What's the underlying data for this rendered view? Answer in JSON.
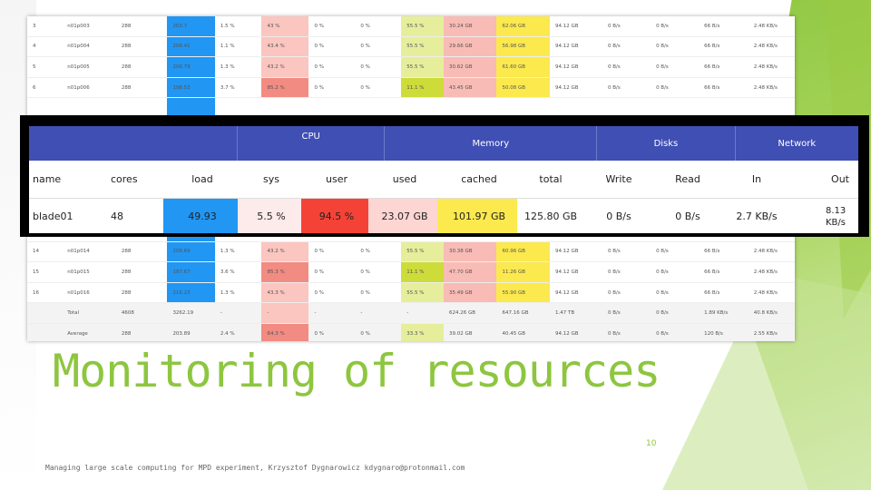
{
  "colors": {
    "accent": "#8dc63f",
    "header": "#3f4fb3",
    "load": "#2196f3",
    "user": "#f44336",
    "cached": "#ffeb3b"
  },
  "bg_rows": [
    {
      "idx": "3",
      "name": "n01p003",
      "cores": "288",
      "load": "203.7",
      "sys": "1.5 %",
      "user": "43 %",
      "c1": "0 %",
      "c2": "0 %",
      "c3": "55.5 %",
      "used": "30.24 GB",
      "cached": "62.06 GB",
      "total": "94.12 GB",
      "w": "0 B/s",
      "r": "0 B/s",
      "in": "66 B/s",
      "out": "2.48 KB/s"
    },
    {
      "idx": "4",
      "name": "n01p004",
      "cores": "288",
      "load": "206.41",
      "sys": "1.1 %",
      "user": "43.4 %",
      "c1": "0 %",
      "c2": "0 %",
      "c3": "55.5 %",
      "used": "29.66 GB",
      "cached": "56.98 GB",
      "total": "94.12 GB",
      "w": "0 B/s",
      "r": "0 B/s",
      "in": "66 B/s",
      "out": "2.48 KB/s"
    },
    {
      "idx": "5",
      "name": "n01p005",
      "cores": "288",
      "load": "206.79",
      "sys": "1.3 %",
      "user": "43.2 %",
      "c1": "0 %",
      "c2": "0 %",
      "c3": "55.5 %",
      "used": "30.62 GB",
      "cached": "61.60 GB",
      "total": "94.12 GB",
      "w": "0 B/s",
      "r": "0 B/s",
      "in": "66 B/s",
      "out": "2.48 KB/s"
    },
    {
      "idx": "6",
      "name": "n01p006",
      "cores": "288",
      "load": "198.53",
      "sys": "3.7 %",
      "user": "85.2 %",
      "c1": "0 %",
      "c2": "0 %",
      "c3": "11.1 %",
      "used": "43.45 GB",
      "cached": "50.08 GB",
      "total": "94.12 GB",
      "w": "0 B/s",
      "r": "0 B/s",
      "in": "66 B/s",
      "out": "2.48 KB/s"
    },
    {
      "idx": "",
      "name": "",
      "cores": "",
      "load": "",
      "sys": "",
      "user": "",
      "c1": "",
      "c2": "",
      "c3": "",
      "used": "",
      "cached": "",
      "total": "",
      "w": "",
      "r": "",
      "in": "",
      "out": ""
    },
    {
      "idx": "",
      "name": "",
      "cores": "",
      "load": "",
      "sys": "",
      "user": "",
      "c1": "",
      "c2": "",
      "c3": "",
      "used": "",
      "cached": "",
      "total": "",
      "w": "",
      "r": "",
      "in": "",
      "out": ""
    },
    {
      "idx": "",
      "name": "",
      "cores": "",
      "load": "",
      "sys": "",
      "user": "",
      "c1": "",
      "c2": "",
      "c3": "",
      "used": "",
      "cached": "",
      "total": "",
      "w": "",
      "r": "",
      "in": "",
      "out": ""
    },
    {
      "idx": "",
      "name": "",
      "cores": "",
      "load": "",
      "sys": "",
      "user": "",
      "c1": "",
      "c2": "",
      "c3": "",
      "used": "",
      "cached": "",
      "total": "",
      "w": "",
      "r": "",
      "in": "",
      "out": ""
    },
    {
      "idx": "",
      "name": "",
      "cores": "",
      "load": "",
      "sys": "",
      "user": "",
      "c1": "",
      "c2": "",
      "c3": "",
      "used": "",
      "cached": "",
      "total": "",
      "w": "",
      "r": "",
      "in": "",
      "out": ""
    },
    {
      "idx": "",
      "name": "",
      "cores": "",
      "load": "",
      "sys": "",
      "user": "",
      "c1": "",
      "c2": "",
      "c3": "",
      "used": "",
      "cached": "",
      "total": "",
      "w": "",
      "r": "",
      "in": "",
      "out": ""
    },
    {
      "idx": "",
      "name": "",
      "cores": "",
      "load": "",
      "sys": "",
      "user": "",
      "c1": "",
      "c2": "",
      "c3": "",
      "used": "",
      "cached": "",
      "total": "",
      "w": "",
      "r": "",
      "in": "",
      "out": ""
    },
    {
      "idx": "14",
      "name": "n01p014",
      "cores": "288",
      "load": "208.69",
      "sys": "1.3 %",
      "user": "43.2 %",
      "c1": "0 %",
      "c2": "0 %",
      "c3": "55.5 %",
      "used": "30.38 GB",
      "cached": "60.96 GB",
      "total": "94.12 GB",
      "w": "0 B/s",
      "r": "0 B/s",
      "in": "66 B/s",
      "out": "2.48 KB/s"
    },
    {
      "idx": "15",
      "name": "n01p015",
      "cores": "288",
      "load": "197.67",
      "sys": "3.6 %",
      "user": "85.3 %",
      "c1": "0 %",
      "c2": "0 %",
      "c3": "11.1 %",
      "used": "47.70 GB",
      "cached": "11.26 GB",
      "total": "94.12 GB",
      "w": "0 B/s",
      "r": "0 B/s",
      "in": "66 B/s",
      "out": "2.48 KB/s"
    },
    {
      "idx": "16",
      "name": "n01p016",
      "cores": "288",
      "load": "216.23",
      "sys": "1.3 %",
      "user": "43.3 %",
      "c1": "0 %",
      "c2": "0 %",
      "c3": "55.5 %",
      "used": "35.49 GB",
      "cached": "55.90 GB",
      "total": "94.12 GB",
      "w": "0 B/s",
      "r": "0 B/s",
      "in": "66 B/s",
      "out": "2.48 KB/s"
    },
    {
      "idx": "",
      "name": "Total",
      "cores": "4608",
      "load": "3262.19",
      "sys": "-",
      "user": "-",
      "c1": "-",
      "c2": "-",
      "c3": "-",
      "used": "624.26 GB",
      "cached": "647.16 GB",
      "total": "1.47 TB",
      "w": "0 B/s",
      "r": "0 B/s",
      "in": "1.89 KB/s",
      "out": "40.8 KB/s"
    },
    {
      "idx": "",
      "name": "Average",
      "cores": "288",
      "load": "203.89",
      "sys": "2.4 %",
      "user": "64.3 %",
      "c1": "0 %",
      "c2": "0 %",
      "c3": "33.3 %",
      "used": "39.02 GB",
      "cached": "40.45 GB",
      "total": "94.12 GB",
      "w": "0 B/s",
      "r": "0 B/s",
      "in": "120 B/s",
      "out": "2.55 KB/s"
    }
  ],
  "overlay": {
    "groups": [
      "CPU",
      "Memory",
      "Disks",
      "Network"
    ],
    "columns": [
      "name",
      "cores",
      "load",
      "sys",
      "user",
      "used",
      "cached",
      "total",
      "Write",
      "Read",
      "In",
      "Out"
    ],
    "row": {
      "name": "blade01",
      "cores": "48",
      "load": "49.93",
      "sys": "5.5 %",
      "user": "94.5 %",
      "used": "23.07 GB",
      "cached": "101.97 GB",
      "total": "125.80 GB",
      "write": "0 B/s",
      "read": "0 B/s",
      "in": "2.7 KB/s",
      "out": "8.13 KB/s"
    }
  },
  "slide": {
    "title": "Monitoring of resources",
    "page_number": "10",
    "footer": "Managing large scale computing for MPD experiment, Krzysztof Dygnarowicz kdygnaro@protonmail.com"
  }
}
